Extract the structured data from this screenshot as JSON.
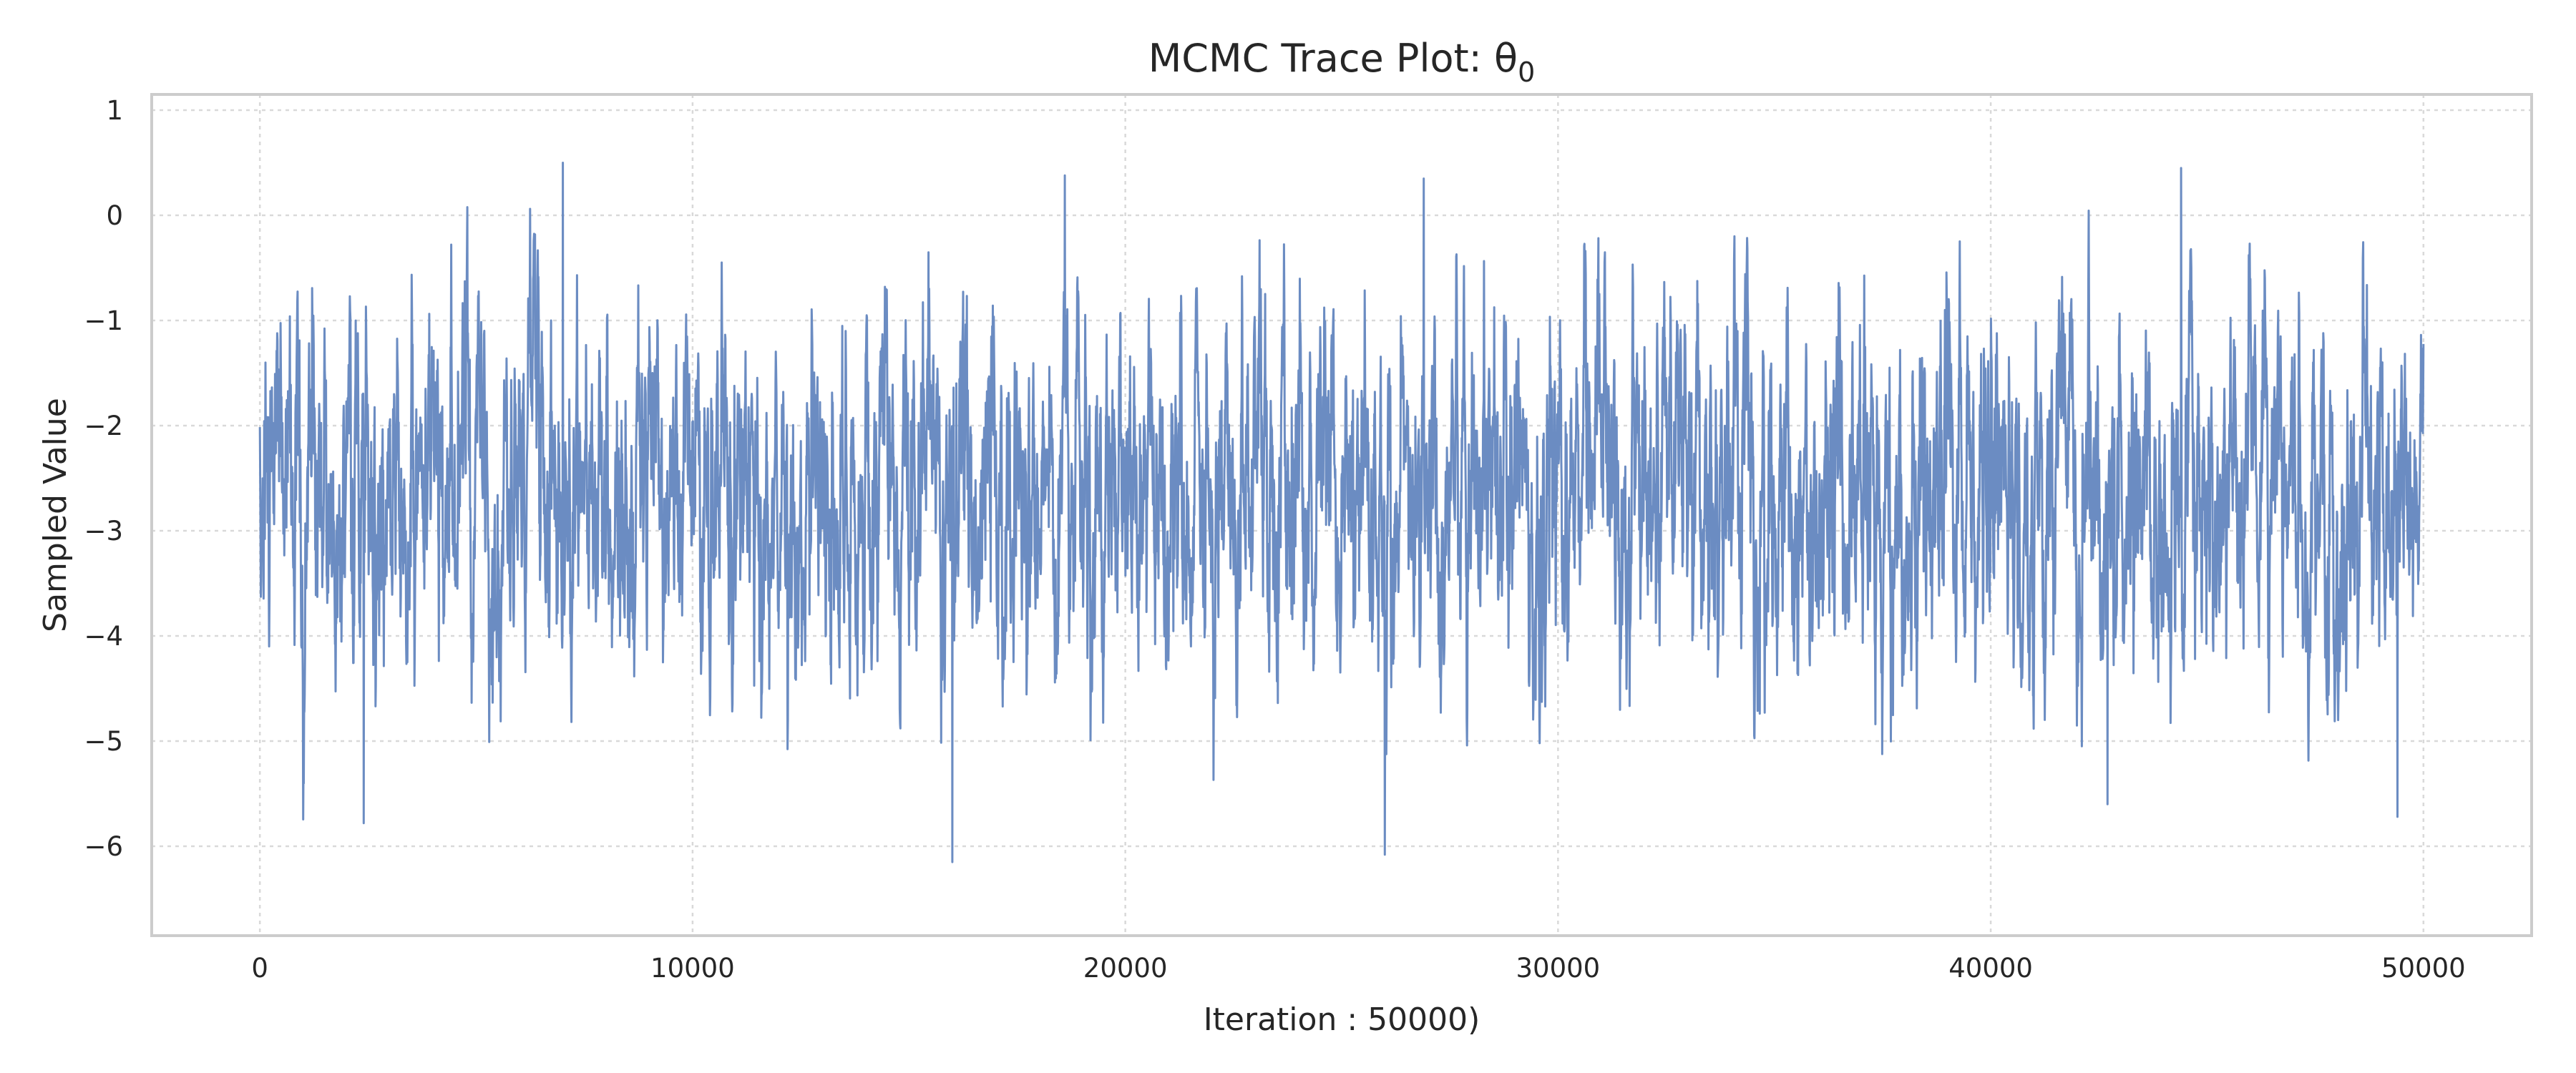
{
  "chart_data": {
    "type": "line",
    "title": "MCMC Trace Plot: θ",
    "title_subscript": "0",
    "xlabel": "Iteration : 50000)",
    "ylabel": "Sampled Value",
    "xlim": [
      -2500,
      52500
    ],
    "ylim": [
      -6.85,
      1.15
    ],
    "xticks": [
      0,
      10000,
      20000,
      30000,
      40000,
      50000
    ],
    "xtick_labels": [
      "0",
      "10000",
      "20000",
      "30000",
      "40000",
      "50000"
    ],
    "yticks": [
      1,
      0,
      -1,
      -2,
      -3,
      -4,
      -5,
      -6
    ],
    "ytick_labels": [
      "1",
      "0",
      "−1",
      "−2",
      "−3",
      "−4",
      "−5",
      "−6"
    ],
    "grid": true,
    "series": [
      {
        "color": "#6b8cc2",
        "n_points": 50000,
        "x_start": 0,
        "x_end": 50000,
        "mean": -2.65,
        "std": 0.85,
        "min": -6.15,
        "max": 0.5,
        "notable_points": [
          {
            "x": 7000,
            "y": 0.5
          },
          {
            "x": 2400,
            "y": -5.78
          },
          {
            "x": 16000,
            "y": -6.15
          },
          {
            "x": 18600,
            "y": 0.38
          },
          {
            "x": 26000,
            "y": -6.08
          },
          {
            "x": 26900,
            "y": 0.35
          },
          {
            "x": 44400,
            "y": 0.45
          },
          {
            "x": 42700,
            "y": -5.6
          },
          {
            "x": 49400,
            "y": -5.72
          }
        ]
      }
    ]
  }
}
